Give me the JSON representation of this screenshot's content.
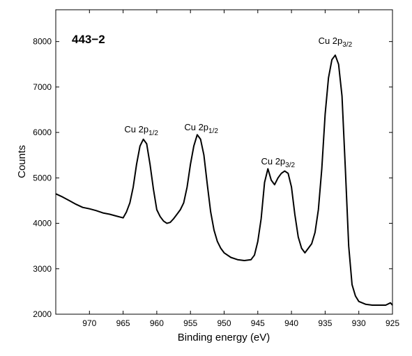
{
  "chart_data": {
    "type": "line",
    "title": "443−2",
    "xlabel": "Binding energy (eV)",
    "ylabel": "Counts",
    "xlim": [
      975,
      925
    ],
    "x_reversed": true,
    "ylim": [
      2000,
      8700
    ],
    "xticks": [
      970,
      965,
      960,
      955,
      950,
      945,
      940,
      935,
      930,
      925
    ],
    "yticks": [
      2000,
      3000,
      4000,
      5000,
      6000,
      7000,
      8000
    ],
    "grid": false,
    "annotations": [
      {
        "main": "Cu 2p",
        "sub": "1/2",
        "x": 962.3,
        "y": 6000
      },
      {
        "main": "Cu 2p",
        "sub": "1/2",
        "x": 953.4,
        "y": 6050
      },
      {
        "main": "Cu 2p",
        "sub": "3/2",
        "x": 942.0,
        "y": 5300
      },
      {
        "main": "Cu 2p",
        "sub": "3/2",
        "x": 933.5,
        "y": 7950
      }
    ],
    "series": [
      {
        "x": [
          975,
          974,
          973,
          972,
          971,
          970,
          969,
          968,
          967,
          966,
          965,
          964.5,
          964,
          963.5,
          963,
          962.5,
          962,
          961.5,
          961,
          960.5,
          960,
          959.5,
          959,
          958.5,
          958,
          957.5,
          957,
          956.5,
          956,
          955.5,
          955,
          954.5,
          954,
          953.5,
          953,
          952.5,
          952,
          951.5,
          951,
          950.5,
          950,
          949,
          948,
          947,
          946,
          945.5,
          945,
          944.5,
          944,
          943.5,
          943,
          942.5,
          942,
          941.5,
          941,
          940.5,
          940,
          939.5,
          939,
          938.5,
          938,
          937,
          936.5,
          936,
          935.5,
          935,
          934.5,
          934,
          933.5,
          933,
          932.5,
          932,
          931.5,
          931,
          930.5,
          930,
          929,
          928,
          927,
          926,
          925.3,
          925
        ],
        "y": [
          4650,
          4580,
          4500,
          4420,
          4350,
          4320,
          4280,
          4230,
          4200,
          4160,
          4120,
          4250,
          4450,
          4800,
          5300,
          5700,
          5850,
          5750,
          5300,
          4750,
          4300,
          4150,
          4050,
          4000,
          4020,
          4100,
          4200,
          4300,
          4450,
          4800,
          5300,
          5700,
          5950,
          5850,
          5500,
          4850,
          4250,
          3850,
          3600,
          3450,
          3350,
          3250,
          3200,
          3180,
          3200,
          3300,
          3600,
          4100,
          4900,
          5200,
          4950,
          4850,
          5000,
          5100,
          5150,
          5100,
          4800,
          4200,
          3700,
          3450,
          3350,
          3550,
          3800,
          4300,
          5200,
          6400,
          7200,
          7600,
          7700,
          7500,
          6800,
          5200,
          3500,
          2650,
          2400,
          2280,
          2220,
          2200,
          2200,
          2200,
          2250,
          2200
        ]
      }
    ]
  }
}
